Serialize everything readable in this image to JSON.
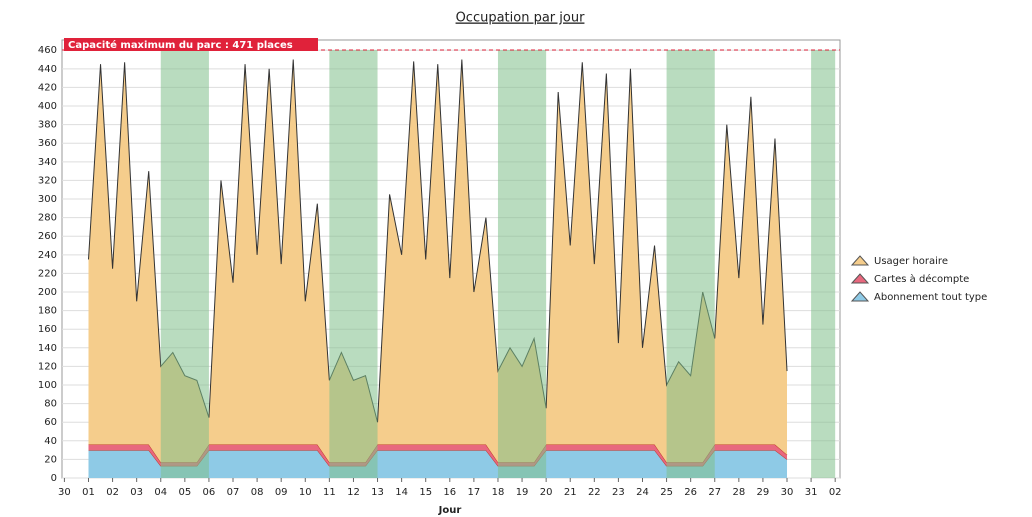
{
  "chart_data": {
    "type": "stacked_area",
    "title": "Occupation par jour",
    "xlabel": "Jour",
    "capacity_label": "Capacité maximum du parc : 471 places",
    "capacity": 471,
    "capacity_color": "#e0223a",
    "xlim": [
      -0.1,
      32.2
    ],
    "ylim": [
      0,
      471
    ],
    "yticks": [
      0,
      20,
      40,
      60,
      80,
      100,
      120,
      140,
      160,
      180,
      200,
      220,
      240,
      260,
      280,
      300,
      320,
      340,
      360,
      380,
      400,
      420,
      440,
      460
    ],
    "xticks": [
      {
        "value": 0,
        "label": "30"
      },
      {
        "value": 1,
        "label": "01"
      },
      {
        "value": 2,
        "label": "02"
      },
      {
        "value": 3,
        "label": "03"
      },
      {
        "value": 4,
        "label": "04"
      },
      {
        "value": 5,
        "label": "05"
      },
      {
        "value": 6,
        "label": "06"
      },
      {
        "value": 7,
        "label": "07"
      },
      {
        "value": 8,
        "label": "08"
      },
      {
        "value": 9,
        "label": "09"
      },
      10,
      11,
      12,
      13,
      14,
      15,
      16,
      17,
      18,
      19,
      20,
      21,
      22,
      23,
      24,
      25,
      26,
      27,
      28,
      29,
      30,
      31,
      {
        "value": 32,
        "label": "02"
      }
    ],
    "grid": true,
    "bands": [
      [
        4,
        6
      ],
      [
        11,
        13
      ],
      [
        18,
        20
      ],
      [
        25,
        27
      ],
      [
        31,
        32
      ]
    ],
    "band_color": "#7fbf8a",
    "x": [
      1,
      1.5,
      2,
      2.5,
      3,
      3.5,
      4,
      4.5,
      5,
      5.5,
      6,
      6.5,
      7,
      7.5,
      8,
      8.5,
      9,
      9.5,
      10,
      10.5,
      11,
      11.5,
      12,
      12.5,
      13,
      13.5,
      14,
      14.5,
      15,
      15.5,
      16,
      16.5,
      17,
      17.5,
      18,
      18.5,
      19,
      19.5,
      20,
      20.5,
      21,
      21.5,
      22,
      22.5,
      23,
      23.5,
      24,
      24.5,
      25,
      25.5,
      26,
      26.5,
      27,
      27.5,
      28,
      28.5,
      29,
      29.5,
      30
    ],
    "series": [
      {
        "name": "Abonnement tout type",
        "color": "#8ecae6",
        "values": [
          30,
          30,
          30,
          30,
          30,
          30,
          13,
          13,
          13,
          13,
          30,
          30,
          30,
          30,
          30,
          30,
          30,
          30,
          30,
          30,
          13,
          13,
          13,
          13,
          30,
          30,
          30,
          30,
          30,
          30,
          30,
          30,
          30,
          30,
          13,
          13,
          13,
          13,
          30,
          30,
          30,
          30,
          30,
          30,
          30,
          30,
          30,
          30,
          13,
          13,
          13,
          13,
          30,
          30,
          30,
          30,
          30,
          30,
          20
        ]
      },
      {
        "name": "Cartes à décompte",
        "color": "#e8687e",
        "values": [
          6,
          6,
          6,
          6,
          6,
          6,
          4,
          4,
          4,
          4,
          6,
          6,
          6,
          6,
          6,
          6,
          6,
          6,
          6,
          6,
          4,
          4,
          4,
          4,
          6,
          6,
          6,
          6,
          6,
          6,
          6,
          6,
          6,
          6,
          4,
          4,
          4,
          4,
          6,
          6,
          6,
          6,
          6,
          6,
          6,
          6,
          6,
          6,
          4,
          4,
          4,
          4,
          6,
          6,
          6,
          6,
          6,
          6,
          5
        ]
      },
      {
        "name": "Usager horaire",
        "color": "#f5cd8c",
        "values": [
          199,
          409,
          189,
          411,
          154,
          294,
          103,
          118,
          93,
          88,
          29,
          284,
          174,
          409,
          204,
          404,
          194,
          414,
          154,
          259,
          88,
          118,
          88,
          93,
          24,
          269,
          204,
          412,
          199,
          409,
          179,
          414,
          164,
          244,
          98,
          123,
          103,
          133,
          39,
          379,
          214,
          411,
          194,
          399,
          109,
          404,
          104,
          214,
          83,
          108,
          93,
          183,
          114,
          344,
          179,
          374,
          129,
          329,
          90
        ]
      }
    ],
    "legend": "right"
  }
}
